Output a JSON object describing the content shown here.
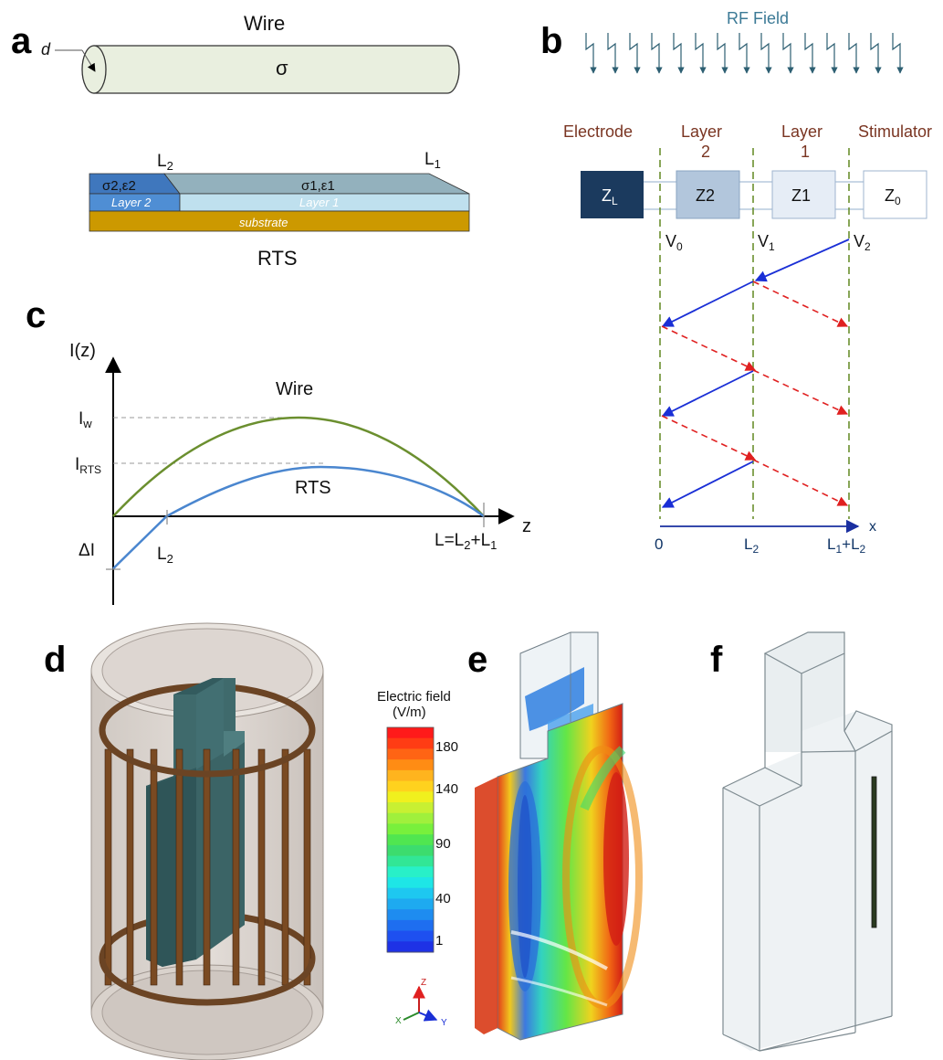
{
  "panel_letters": {
    "a": "a",
    "b": "b",
    "c": "c",
    "d": "d",
    "e": "e",
    "f": "f"
  },
  "panel_a": {
    "wire_title": "Wire",
    "d_label": "d",
    "sigma": "σ",
    "L2": "L",
    "L2_sub": "2",
    "L1": "L",
    "L1_sub": "1",
    "seg2_label": "σ2,ε2",
    "seg1_label": "σ1,ε1",
    "layer2": "Layer 2",
    "layer1": "Layer 1",
    "substrate": "substrate",
    "rts_title": "RTS",
    "colors": {
      "wire_fill": "#e9efdf",
      "layer2_top": "#3f77bd",
      "layer2": "#4f8ed4",
      "layer1_top": "#93b1bd",
      "layer1": "#bfe0ee",
      "substrate": "#cc9900"
    }
  },
  "panel_b": {
    "rf_field": "RF Field",
    "headers": {
      "electrode": "Electrode",
      "layer2_l1": "Layer",
      "layer2_l2": "2",
      "layer1_l1": "Layer",
      "layer1_l2": "1",
      "stimulator": "Stimulator"
    },
    "boxes": {
      "zl": "Z",
      "zl_sub": "L",
      "z2": "Z2",
      "z1": "Z1",
      "z0": "Z",
      "z0_sub": "0"
    },
    "voltages": {
      "v0": "V",
      "v0_sub": "0",
      "v1": "V",
      "v1_sub": "1",
      "v2": "V",
      "v2_sub": "2"
    },
    "axis": {
      "x": "x",
      "t0": "0",
      "tL2": "L",
      "tL2_sub": "2",
      "tL1": "L",
      "tL1_sub": "1",
      "tL1b": "+L",
      "tL1b_sub": "2"
    },
    "colors": {
      "zl": "#1b3a5e",
      "z2": "#b2c6dc",
      "z1": "#e6edf6",
      "z0": "#ffffff",
      "dash": "#6b8f2f",
      "incident": "#1a2fd6",
      "reflected": "#e02020",
      "header": "#7a3522"
    }
  },
  "panel_c": {
    "chart_data": {
      "type": "line",
      "ylabel": "I(z)",
      "xlabel": "z",
      "series": [
        {
          "name": "Wire",
          "points": [
            [
              0,
              0
            ],
            [
              0.5,
              1.0
            ],
            [
              1.0,
              0
            ]
          ]
        },
        {
          "name": "RTS",
          "points": [
            [
              0,
              -0.53
            ],
            [
              0.144,
              0
            ],
            [
              0.56,
              0.5
            ],
            [
              1.0,
              0
            ]
          ]
        }
      ],
      "y_ticks": [
        "I",
        "I",
        "ΔI"
      ],
      "x_ticks": [
        "L",
        "L=L"
      ],
      "colors": {
        "Wire": "#6b8f2f",
        "RTS": "#4a86cf"
      }
    },
    "labels": {
      "ylabel": "I(z)",
      "xlabel": "z",
      "iw": "I",
      "iw_sub": "w",
      "irts": "I",
      "irts_sub": "RTS",
      "di": "ΔI",
      "l2": "L",
      "l2_sub": "2",
      "lsum": "L=L",
      "lsum_sub1": "2",
      "lsum_mid": "+L",
      "lsum_sub2": "1",
      "wire": "Wire",
      "rts": "RTS"
    }
  },
  "panel_e": {
    "colorbar_title1": "Electric field",
    "colorbar_title2": "(V/m)",
    "ticks": [
      "180",
      "140",
      "90",
      "40",
      "1"
    ],
    "colorbar": [
      "#ff1a1a",
      "#ff3c14",
      "#ff6414",
      "#ff8c14",
      "#ffb41e",
      "#ffd21e",
      "#f0f01e",
      "#c8f032",
      "#a0f03c",
      "#78f03c",
      "#50e650",
      "#3cdc6e",
      "#32e696",
      "#28f0c8",
      "#1ee6e6",
      "#1ec8f0",
      "#1eaaf0",
      "#1e8cf0",
      "#1e6ef0",
      "#1e50f0",
      "#1e32e6"
    ],
    "axes": {
      "z": "Z",
      "x": "X",
      "y": "Y"
    }
  }
}
